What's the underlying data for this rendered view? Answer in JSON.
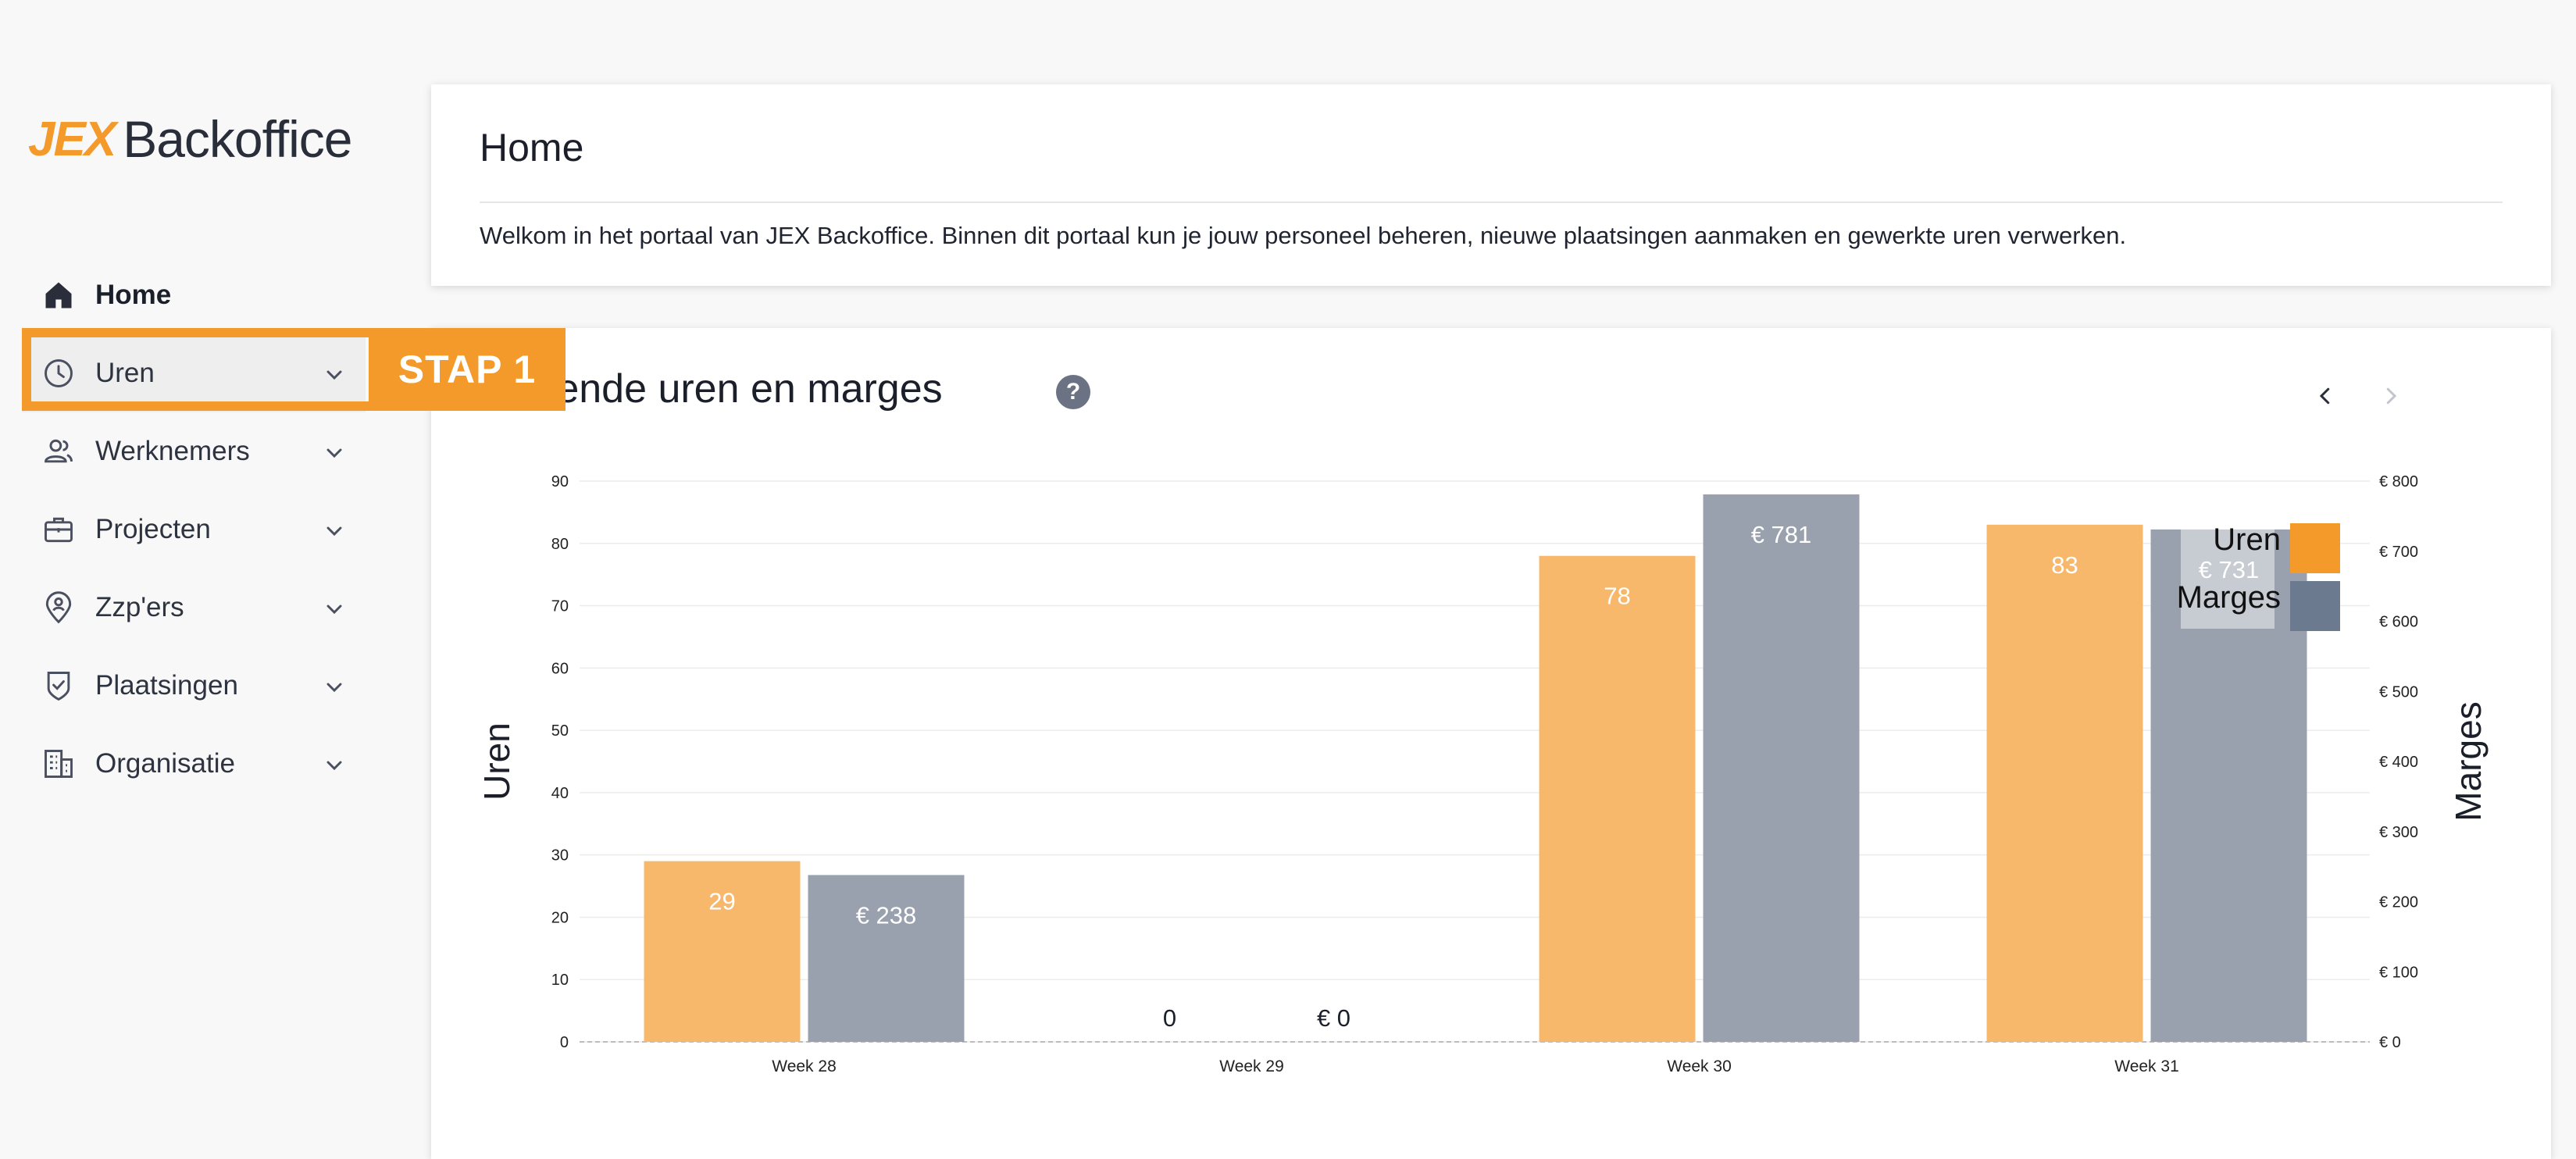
{
  "logo": {
    "brand": "JEX",
    "product": "Backoffice"
  },
  "sidebar": {
    "items": [
      {
        "label": "Home",
        "icon": "home-icon"
      },
      {
        "label": "Uren",
        "icon": "clock-icon"
      },
      {
        "label": "Werknemers",
        "icon": "users-icon"
      },
      {
        "label": "Projecten",
        "icon": "briefcase-icon"
      },
      {
        "label": "Zzp'ers",
        "icon": "location-person-icon"
      },
      {
        "label": "Plaatsingen",
        "icon": "shield-check-icon"
      },
      {
        "label": "Organisatie",
        "icon": "building-icon"
      }
    ]
  },
  "overlay": {
    "step_label": "STAP 1"
  },
  "welcome": {
    "title": "Home",
    "text": "Welkom in het portaal van JEX Backoffice. Binnen dit portaal kun je jouw personeel beheren, nieuwe plaatsingen aanmaken en gewerkte uren verwerken."
  },
  "chart_card": {
    "title": "gediende uren en marges",
    "help": "?"
  },
  "colors": {
    "accent": "#f39a2b",
    "uren": "#f7b86b",
    "marges": "#9aa1ae",
    "legend_marges": "#6b7a8f"
  },
  "chart_data": {
    "type": "bar",
    "categories": [
      "Week 28",
      "Week 29",
      "Week 30",
      "Week 31"
    ],
    "series": [
      {
        "name": "Uren",
        "axis": "left",
        "values": [
          29,
          0,
          78,
          83
        ],
        "labels": [
          "29",
          "0",
          "78",
          "83"
        ]
      },
      {
        "name": "Marges",
        "axis": "right",
        "values": [
          238,
          0,
          781,
          731
        ],
        "labels": [
          "€ 238",
          "€ 0",
          "€ 781",
          "€ 731"
        ]
      }
    ],
    "ylabel": "Uren",
    "y2label": "Marges",
    "ylim": [
      0,
      90
    ],
    "y2lim": [
      0,
      800
    ],
    "yticks": [
      "0",
      "10",
      "20",
      "30",
      "40",
      "50",
      "60",
      "70",
      "80",
      "90"
    ],
    "y2ticks": [
      "€ 0",
      "€ 100",
      "€ 200",
      "€ 300",
      "€ 400",
      "€ 500",
      "€ 600",
      "€ 700",
      "€ 800"
    ],
    "grid": true,
    "legend": "top-right"
  }
}
